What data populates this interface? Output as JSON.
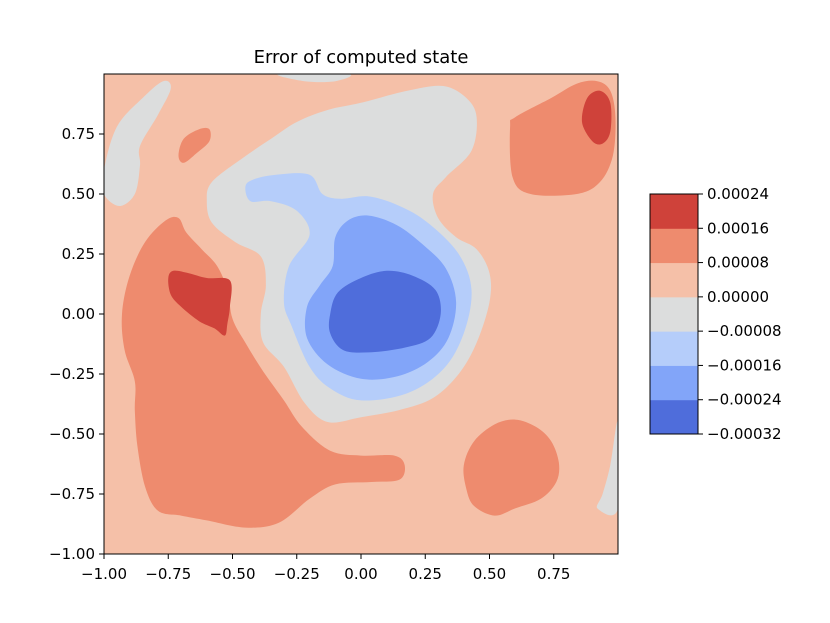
{
  "chart_data": {
    "type": "contourf",
    "title": "Error of computed state",
    "xlabel": "",
    "ylabel": "",
    "xlim": [
      -1.0,
      1.0
    ],
    "ylim": [
      -1.0,
      1.0
    ],
    "x_ticks": [
      "−1.00",
      "−0.75",
      "−0.50",
      "−0.25",
      "0.00",
      "0.25",
      "0.50",
      "0.75"
    ],
    "x_tick_values": [
      -1.0,
      -0.75,
      -0.5,
      -0.25,
      0.0,
      0.25,
      0.5,
      0.75
    ],
    "y_ticks": [
      "−1.00",
      "−0.75",
      "−0.50",
      "−0.25",
      "0.00",
      "0.25",
      "0.50",
      "0.75"
    ],
    "y_tick_values": [
      -1.0,
      -0.75,
      -0.5,
      -0.25,
      0.0,
      0.25,
      0.5,
      0.75
    ],
    "colormap": "coolwarm",
    "levels": [
      -0.00032,
      -0.00024,
      -0.00016,
      -8e-05,
      0.0,
      8e-05,
      0.00016,
      0.00024
    ],
    "level_labels": [
      "−0.00032",
      "−0.00024",
      "−0.00016",
      "−0.00008",
      "0.00000",
      "0.00008",
      "0.00016",
      "0.00024"
    ],
    "band_colors": [
      "#4f6ddb",
      "#82a5f9",
      "#b5cdfa",
      "#dcdddd",
      "#f5c0a8",
      "#ee8b6e",
      "#cf423a"
    ],
    "background_color": "#f5c0a8",
    "regions": [
      {
        "name": "top-gray-sliver",
        "level": 3,
        "points": [
          [
            -0.32,
            1.0
          ],
          [
            -0.05,
            1.0
          ],
          [
            -0.1,
            0.97
          ],
          [
            -0.22,
            0.97
          ]
        ]
      },
      {
        "name": "left-gray-lobe",
        "level": 3,
        "points": [
          [
            -1.0,
            0.6
          ],
          [
            -0.95,
            0.78
          ],
          [
            -0.85,
            0.9
          ],
          [
            -0.77,
            0.97
          ],
          [
            -0.74,
            0.94
          ],
          [
            -0.79,
            0.83
          ],
          [
            -0.86,
            0.7
          ],
          [
            -0.86,
            0.62
          ],
          [
            -0.88,
            0.5
          ],
          [
            -0.94,
            0.45
          ],
          [
            -1.0,
            0.5
          ]
        ]
      },
      {
        "name": "right-edge-gray",
        "level": 3,
        "points": [
          [
            1.0,
            -0.45
          ],
          [
            0.97,
            -0.63
          ],
          [
            0.94,
            -0.75
          ],
          [
            0.92,
            -0.81
          ],
          [
            1.0,
            -0.81
          ]
        ]
      },
      {
        "name": "upper-right-orange",
        "level": 5,
        "points": [
          [
            0.6,
            0.82
          ],
          [
            0.58,
            0.78
          ],
          [
            0.59,
            0.57
          ],
          [
            0.66,
            0.5
          ],
          [
            0.84,
            0.5
          ],
          [
            0.93,
            0.55
          ],
          [
            0.98,
            0.66
          ],
          [
            0.99,
            0.82
          ],
          [
            0.97,
            0.93
          ],
          [
            0.92,
            0.97
          ],
          [
            0.84,
            0.96
          ],
          [
            0.74,
            0.9
          ]
        ]
      },
      {
        "name": "upper-right-red",
        "level": 6,
        "points": [
          [
            0.86,
            0.8
          ],
          [
            0.88,
            0.9
          ],
          [
            0.93,
            0.93
          ],
          [
            0.97,
            0.88
          ],
          [
            0.97,
            0.76
          ],
          [
            0.94,
            0.71
          ],
          [
            0.9,
            0.72
          ]
        ]
      },
      {
        "name": "upper-left-orange-spot",
        "level": 5,
        "points": [
          [
            -0.71,
            0.66
          ],
          [
            -0.69,
            0.73
          ],
          [
            -0.63,
            0.77
          ],
          [
            -0.59,
            0.77
          ],
          [
            -0.59,
            0.72
          ],
          [
            -0.64,
            0.67
          ],
          [
            -0.69,
            0.63
          ]
        ]
      },
      {
        "name": "left-orange-lobe",
        "level": 5,
        "points": [
          [
            -0.76,
            0.39
          ],
          [
            -0.84,
            0.3
          ],
          [
            -0.9,
            0.16
          ],
          [
            -0.93,
            0.0
          ],
          [
            -0.92,
            -0.15
          ],
          [
            -0.88,
            -0.28
          ],
          [
            -0.88,
            -0.4
          ],
          [
            -0.87,
            -0.55
          ],
          [
            -0.84,
            -0.72
          ],
          [
            -0.79,
            -0.82
          ],
          [
            -0.7,
            -0.84
          ],
          [
            -0.6,
            -0.86
          ],
          [
            -0.45,
            -0.89
          ],
          [
            -0.32,
            -0.87
          ],
          [
            -0.2,
            -0.77
          ],
          [
            -0.1,
            -0.71
          ],
          [
            0.04,
            -0.7
          ],
          [
            0.15,
            -0.69
          ],
          [
            0.17,
            -0.63
          ],
          [
            0.13,
            -0.59
          ],
          [
            0.0,
            -0.59
          ],
          [
            -0.12,
            -0.57
          ],
          [
            -0.23,
            -0.47
          ],
          [
            -0.3,
            -0.36
          ],
          [
            -0.38,
            -0.24
          ],
          [
            -0.45,
            -0.12
          ],
          [
            -0.5,
            -0.02
          ],
          [
            -0.52,
            0.1
          ],
          [
            -0.56,
            0.2
          ],
          [
            -0.62,
            0.27
          ],
          [
            -0.68,
            0.34
          ],
          [
            -0.71,
            0.4
          ]
        ]
      },
      {
        "name": "left-red-lobe",
        "level": 6,
        "points": [
          [
            -0.75,
            0.15
          ],
          [
            -0.73,
            0.18
          ],
          [
            -0.67,
            0.17
          ],
          [
            -0.6,
            0.15
          ],
          [
            -0.51,
            0.14
          ],
          [
            -0.51,
            0.03
          ],
          [
            -0.52,
            -0.04
          ],
          [
            -0.53,
            -0.09
          ],
          [
            -0.57,
            -0.06
          ],
          [
            -0.63,
            -0.03
          ],
          [
            -0.7,
            0.03
          ],
          [
            -0.74,
            0.08
          ]
        ]
      },
      {
        "name": "bottom-right-orange",
        "level": 5,
        "points": [
          [
            0.4,
            -0.63
          ],
          [
            0.44,
            -0.53
          ],
          [
            0.52,
            -0.46
          ],
          [
            0.6,
            -0.44
          ],
          [
            0.68,
            -0.47
          ],
          [
            0.74,
            -0.53
          ],
          [
            0.77,
            -0.62
          ],
          [
            0.76,
            -0.7
          ],
          [
            0.7,
            -0.77
          ],
          [
            0.6,
            -0.81
          ],
          [
            0.52,
            -0.84
          ],
          [
            0.44,
            -0.8
          ],
          [
            0.41,
            -0.73
          ]
        ]
      },
      {
        "name": "center-gray",
        "level": 3,
        "points": [
          [
            -0.35,
            0.73
          ],
          [
            -0.25,
            0.8
          ],
          [
            -0.13,
            0.85
          ],
          [
            0.0,
            0.88
          ],
          [
            0.18,
            0.93
          ],
          [
            0.32,
            0.95
          ],
          [
            0.41,
            0.9
          ],
          [
            0.45,
            0.82
          ],
          [
            0.43,
            0.68
          ],
          [
            0.33,
            0.57
          ],
          [
            0.28,
            0.5
          ],
          [
            0.3,
            0.4
          ],
          [
            0.37,
            0.32
          ],
          [
            0.45,
            0.27
          ],
          [
            0.5,
            0.17
          ],
          [
            0.5,
            0.05
          ],
          [
            0.45,
            -0.12
          ],
          [
            0.38,
            -0.25
          ],
          [
            0.28,
            -0.35
          ],
          [
            0.15,
            -0.4
          ],
          [
            0.0,
            -0.43
          ],
          [
            -0.13,
            -0.45
          ],
          [
            -0.22,
            -0.37
          ],
          [
            -0.3,
            -0.22
          ],
          [
            -0.38,
            -0.12
          ],
          [
            -0.39,
            0.0
          ],
          [
            -0.37,
            0.12
          ],
          [
            -0.39,
            0.24
          ],
          [
            -0.49,
            0.3
          ],
          [
            -0.58,
            0.38
          ],
          [
            -0.6,
            0.47
          ],
          [
            -0.58,
            0.55
          ],
          [
            -0.46,
            0.65
          ]
        ]
      },
      {
        "name": "center-light-blue",
        "level": 2,
        "points": [
          [
            -0.45,
            0.53
          ],
          [
            -0.42,
            0.56
          ],
          [
            -0.33,
            0.58
          ],
          [
            -0.2,
            0.58
          ],
          [
            -0.15,
            0.5
          ],
          [
            -0.08,
            0.48
          ],
          [
            0.03,
            0.49
          ],
          [
            0.15,
            0.45
          ],
          [
            0.26,
            0.38
          ],
          [
            0.38,
            0.25
          ],
          [
            0.43,
            0.1
          ],
          [
            0.4,
            -0.08
          ],
          [
            0.32,
            -0.23
          ],
          [
            0.18,
            -0.33
          ],
          [
            0.0,
            -0.36
          ],
          [
            -0.12,
            -0.31
          ],
          [
            -0.2,
            -0.22
          ],
          [
            -0.27,
            -0.05
          ],
          [
            -0.3,
            0.05
          ],
          [
            -0.28,
            0.2
          ],
          [
            -0.2,
            0.33
          ],
          [
            -0.25,
            0.43
          ],
          [
            -0.35,
            0.47
          ],
          [
            -0.43,
            0.47
          ]
        ]
      },
      {
        "name": "center-mid-blue",
        "level": 1,
        "points": [
          [
            -0.11,
            0.2
          ],
          [
            -0.1,
            0.32
          ],
          [
            -0.05,
            0.39
          ],
          [
            0.03,
            0.41
          ],
          [
            0.14,
            0.37
          ],
          [
            0.24,
            0.29
          ],
          [
            0.33,
            0.19
          ],
          [
            0.37,
            0.05
          ],
          [
            0.34,
            -0.1
          ],
          [
            0.26,
            -0.2
          ],
          [
            0.14,
            -0.26
          ],
          [
            0.0,
            -0.27
          ],
          [
            -0.13,
            -0.21
          ],
          [
            -0.21,
            -0.1
          ],
          [
            -0.21,
            0.03
          ],
          [
            -0.16,
            0.12
          ]
        ]
      },
      {
        "name": "center-dark-blue",
        "level": 0,
        "points": [
          [
            -0.12,
            0.0
          ],
          [
            -0.09,
            0.09
          ],
          [
            0.0,
            0.15
          ],
          [
            0.1,
            0.18
          ],
          [
            0.2,
            0.16
          ],
          [
            0.29,
            0.1
          ],
          [
            0.31,
            0.0
          ],
          [
            0.27,
            -0.1
          ],
          [
            0.17,
            -0.14
          ],
          [
            0.03,
            -0.16
          ],
          [
            -0.07,
            -0.15
          ],
          [
            -0.12,
            -0.08
          ]
        ]
      }
    ]
  }
}
